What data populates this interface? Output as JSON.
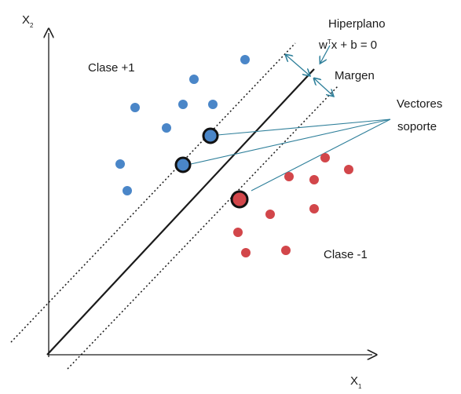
{
  "axes": {
    "y_label": "X",
    "y_sub": "2",
    "x_label": "X",
    "x_sub": "1"
  },
  "hyperplane": {
    "title": "Hiperplano",
    "equation_w": "w",
    "equation_sup": "T",
    "equation_rest": "x + b = 0"
  },
  "margin_label": "Margen",
  "support_vectors_label_line1": "Vectores",
  "support_vectors_label_line2": "soporte",
  "class_positive_label": "Clase +1",
  "class_negative_label": "Clase -1",
  "colors": {
    "class_positive": "#4a86c8",
    "class_negative": "#d2464a",
    "annotation": "#2e7f9a",
    "line": "#1a1a1a"
  }
}
